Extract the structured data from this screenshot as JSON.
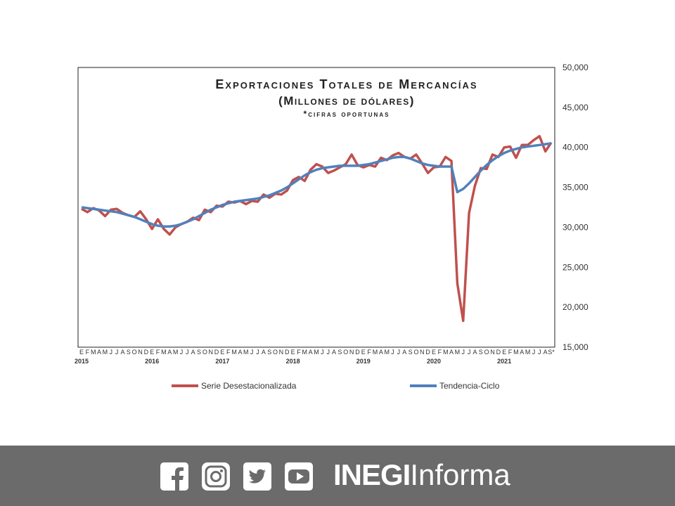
{
  "chart_data": {
    "type": "line",
    "title": "Exportaciones Totales de Mercancías",
    "subtitle": "(Millones de dólares)",
    "note": "*cifras oportunas",
    "ylim": [
      15000,
      50000
    ],
    "yticks": [
      "15,000",
      "20,000",
      "25,000",
      "30,000",
      "35,000",
      "40,000",
      "45,000",
      "50,000"
    ],
    "month_labels": [
      "E",
      "F",
      "M",
      "A",
      "M",
      "J",
      "J",
      "A",
      "S",
      "O",
      "N",
      "D"
    ],
    "last_label": "S*",
    "years": [
      "2015",
      "2016",
      "2017",
      "2018",
      "2019",
      "2020",
      "2021"
    ],
    "legend_position": "bottom",
    "series": [
      {
        "name": "Serie Desestacionalizada",
        "color": "#c0504d",
        "values": [
          32300,
          31900,
          32400,
          32100,
          31400,
          32200,
          32300,
          31800,
          31500,
          31300,
          32000,
          31000,
          29800,
          31000,
          29800,
          29100,
          30000,
          30400,
          30700,
          31200,
          30900,
          32200,
          31900,
          32700,
          32600,
          33200,
          33100,
          33300,
          32900,
          33300,
          33200,
          34100,
          33700,
          34200,
          34100,
          34600,
          35900,
          36300,
          35800,
          37200,
          37900,
          37600,
          36800,
          37100,
          37500,
          37900,
          39100,
          37800,
          37500,
          37800,
          37600,
          38700,
          38400,
          39000,
          39300,
          38800,
          38600,
          39100,
          38000,
          36800,
          37500,
          37600,
          38800,
          38300,
          23000,
          18300,
          31800,
          35200,
          37400,
          37300,
          39100,
          38800,
          40000,
          40100,
          38700,
          40300,
          40300,
          40900,
          41400,
          39500,
          40600
        ]
      },
      {
        "name": "Tendencia-Ciclo",
        "color": "#4f81bd",
        "values": [
          32500,
          32400,
          32300,
          32200,
          32100,
          32000,
          31900,
          31700,
          31500,
          31300,
          31000,
          30700,
          30400,
          30200,
          30100,
          30100,
          30200,
          30400,
          30700,
          31000,
          31400,
          31800,
          32200,
          32500,
          32800,
          33000,
          33200,
          33300,
          33400,
          33500,
          33600,
          33800,
          34000,
          34300,
          34600,
          35000,
          35500,
          36000,
          36500,
          36900,
          37200,
          37400,
          37500,
          37600,
          37700,
          37700,
          37700,
          37700,
          37800,
          37900,
          38100,
          38300,
          38500,
          38700,
          38800,
          38800,
          38600,
          38300,
          38000,
          37800,
          37700,
          37600,
          37600,
          37600,
          34400,
          34800,
          35500,
          36300,
          37100,
          37800,
          38400,
          38900,
          39300,
          39600,
          39800,
          40000,
          40100,
          40200,
          40300,
          40400,
          40500
        ]
      }
    ]
  },
  "footer": {
    "brand_bold": "INEGI",
    "brand_light": "Informa",
    "icons": [
      "facebook-icon",
      "instagram-icon",
      "twitter-icon",
      "youtube-icon"
    ]
  }
}
